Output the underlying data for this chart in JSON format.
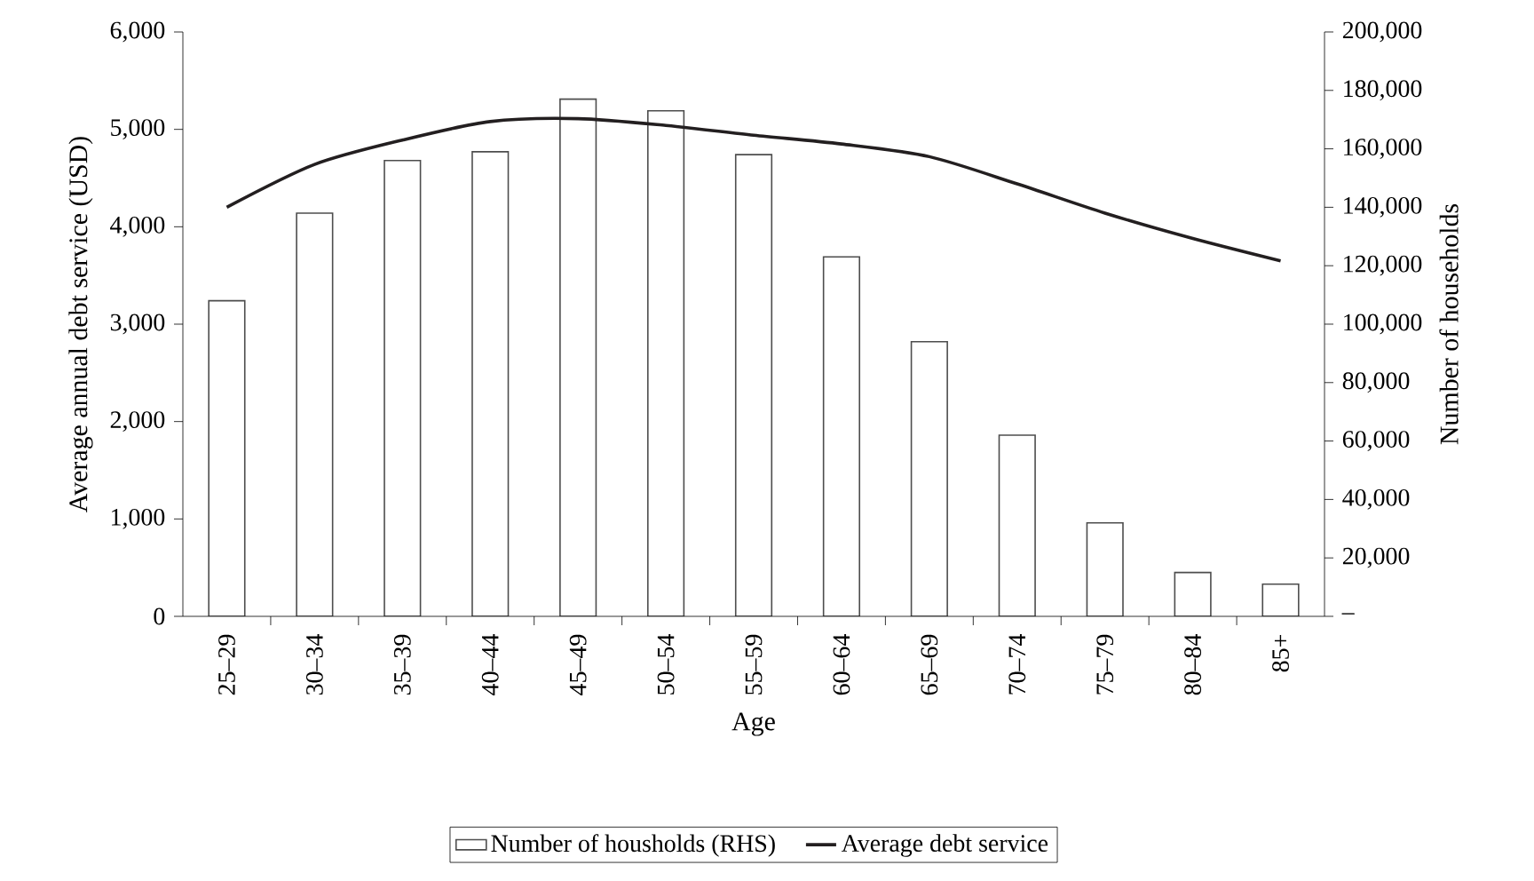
{
  "chart_data": {
    "type": "bar",
    "xlabel": "Age",
    "ylabel": "Average annual debt service (USD)",
    "y2label": "Number of households",
    "categories": [
      "25–29",
      "30–34",
      "35–39",
      "40–44",
      "45–49",
      "50–54",
      "55–59",
      "60–64",
      "65–69",
      "70–74",
      "75–79",
      "80–84",
      "85+"
    ],
    "series": [
      {
        "name": "Number of housholds (RHS)",
        "axis": "y2",
        "color": "#ffffff",
        "values": [
          108000,
          138000,
          156000,
          159000,
          177000,
          173000,
          158000,
          123000,
          94000,
          62000,
          32000,
          15000,
          11000
        ]
      },
      {
        "name": "Average debt service",
        "type": "line",
        "color": "#231f20",
        "values": [
          4200,
          4640,
          4890,
          5080,
          5110,
          5040,
          4940,
          4850,
          4720,
          4440,
          4140,
          3880,
          3650
        ]
      }
    ],
    "ylim": [
      0,
      6000
    ],
    "yticks": [
      0,
      {
        "value": 1000,
        "label": "1,000"
      },
      {
        "value": 2000,
        "label": "2,000"
      },
      {
        "value": 3000,
        "label": "3,000"
      },
      {
        "value": 4000,
        "label": "4,000"
      },
      {
        "value": 5000,
        "label": "5,000"
      },
      {
        "value": 6000,
        "label": "6,000"
      }
    ],
    "y2lim": [
      0,
      200000
    ],
    "y2ticks": [
      {
        "value": 0,
        "label": "–"
      },
      {
        "value": 20000,
        "label": "20,000"
      },
      {
        "value": 40000,
        "label": "40,000"
      },
      {
        "value": 60000,
        "label": "60,000"
      },
      {
        "value": 80000,
        "label": "80,000"
      },
      {
        "value": 100000,
        "label": "100,000"
      },
      {
        "value": 120000,
        "label": "120,000"
      },
      {
        "value": 140000,
        "label": "140,000"
      },
      {
        "value": 160000,
        "label": "160,000"
      },
      {
        "value": 180000,
        "label": "180,000"
      },
      {
        "value": 200000,
        "label": "200,000"
      }
    ],
    "legend": "bottom"
  }
}
